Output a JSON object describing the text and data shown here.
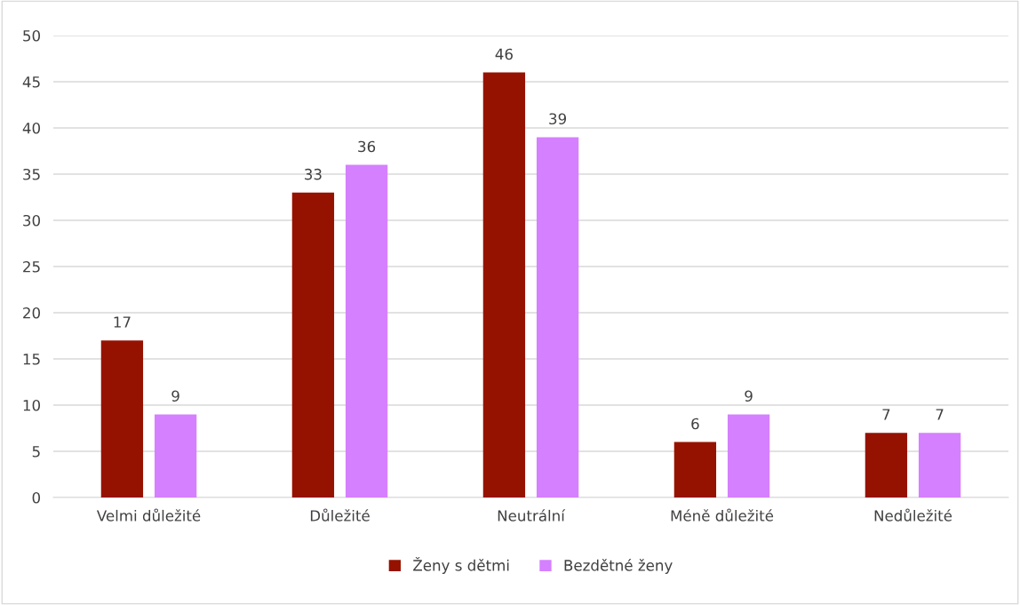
{
  "chart_data": {
    "type": "bar",
    "categories": [
      "Velmi důležité",
      "Důležité",
      "Neutrální",
      "Méně důležité",
      "Nedůležité"
    ],
    "series": [
      {
        "name": "Ženy s dětmi",
        "color": "#961200",
        "values": [
          17,
          33,
          46,
          6,
          7
        ]
      },
      {
        "name": "Bezdětné ženy",
        "color": "#d580ff",
        "values": [
          9,
          36,
          39,
          9,
          7
        ]
      }
    ],
    "ylim": [
      0,
      50
    ],
    "yticks": [
      0,
      5,
      10,
      15,
      20,
      25,
      30,
      35,
      40,
      45,
      50
    ],
    "grid": "y",
    "legend": "bottom",
    "data_labels": true
  }
}
